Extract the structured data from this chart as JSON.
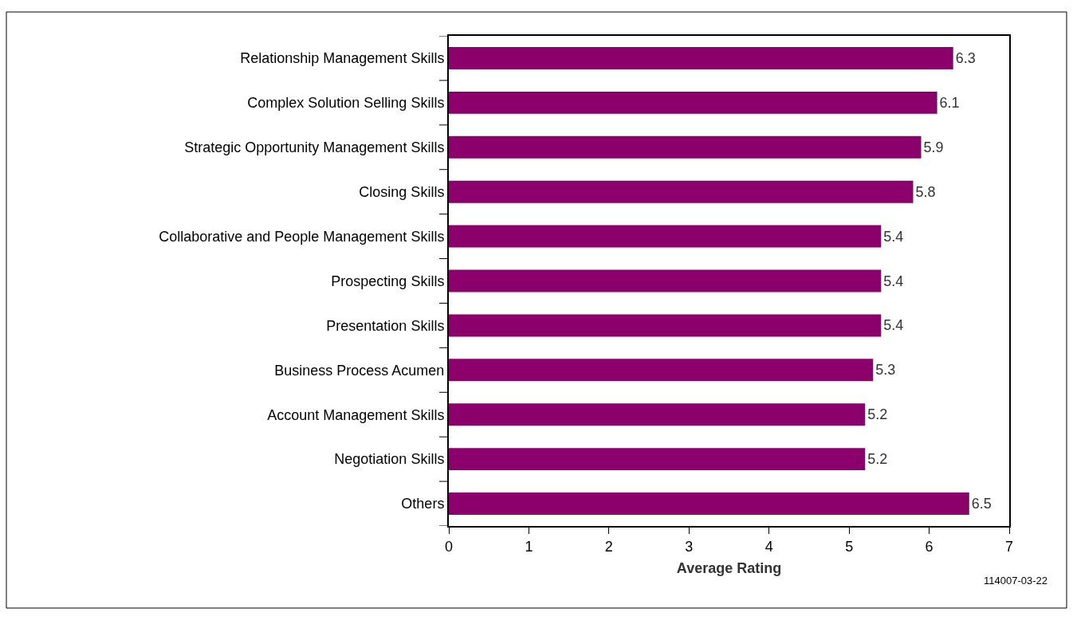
{
  "chart_data": {
    "type": "bar",
    "orientation": "horizontal",
    "xlabel": "Average Rating",
    "categories": [
      "Relationship Management Skills",
      "Complex Solution Selling Skills",
      "Strategic Opportunity Management Skills",
      "Closing Skills",
      "Collaborative and People Management Skills",
      "Prospecting Skills",
      "Presentation Skills",
      "Business Process Acumen",
      "Account Management Skills",
      "Negotiation Skills",
      "Others"
    ],
    "values": [
      6.3,
      6.1,
      5.9,
      5.8,
      5.4,
      5.4,
      5.4,
      5.3,
      5.2,
      5.2,
      6.5
    ],
    "color": "#8b006b",
    "data_labels": true,
    "xlim": [
      0,
      7
    ],
    "xticks": [
      0,
      1,
      2,
      3,
      4,
      5,
      6,
      7
    ],
    "annotations": [
      "114007-03-22"
    ]
  }
}
